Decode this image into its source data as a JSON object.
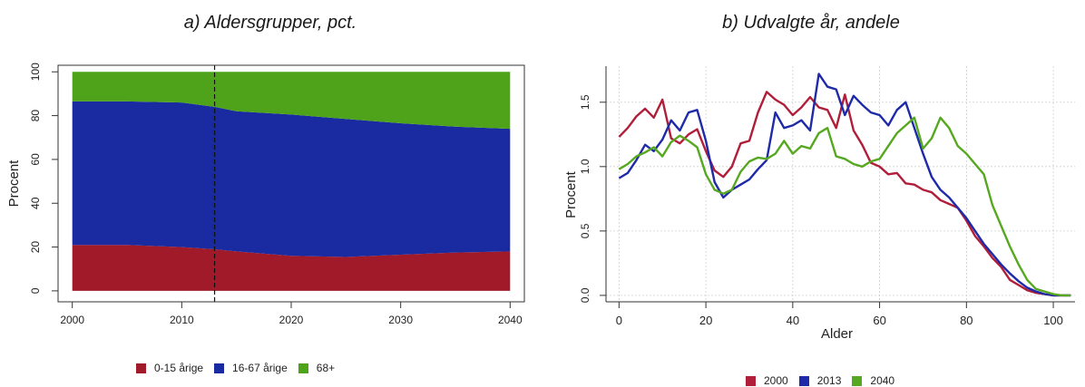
{
  "chart_data": [
    {
      "type": "area",
      "title": "a) Aldersgrupper, pct.",
      "ylabel": "Procent",
      "xlabel": "",
      "xlim": [
        2000,
        2040
      ],
      "ylim": [
        0,
        100
      ],
      "xticks": [
        2000,
        2010,
        2020,
        2030,
        2040
      ],
      "yticks": [
        0,
        20,
        40,
        60,
        80,
        100
      ],
      "vline": 2013,
      "stacked": true,
      "x": [
        2000,
        2005,
        2010,
        2013,
        2015,
        2020,
        2025,
        2030,
        2035,
        2040
      ],
      "series": [
        {
          "name": "0-15 årige",
          "color": "#a01a2a",
          "values": [
            21,
            21,
            20,
            19,
            18,
            16,
            15.5,
            16.5,
            17.5,
            18
          ]
        },
        {
          "name": "16-67 årige",
          "color": "#1a2aa0",
          "values": [
            65.5,
            65.5,
            66,
            65,
            64,
            64.5,
            63,
            60,
            57.5,
            56
          ]
        },
        {
          "name": "68+",
          "color": "#4ea31a",
          "values": [
            13.5,
            13.5,
            14,
            16,
            18,
            19.5,
            21.5,
            23.5,
            25,
            26
          ]
        }
      ],
      "legend": "bottom"
    },
    {
      "type": "line",
      "title": "b) Udvalgte år, andele",
      "xlabel": "Alder",
      "ylabel": "Procent",
      "xlim": [
        -3,
        105
      ],
      "ylim": [
        -0.05,
        1.78
      ],
      "xticks": [
        0,
        20,
        40,
        60,
        80,
        100
      ],
      "yticks": [
        0.0,
        0.5,
        1.0,
        1.5
      ],
      "grid": true,
      "x": [
        0,
        2,
        4,
        6,
        8,
        10,
        12,
        14,
        16,
        18,
        20,
        22,
        24,
        26,
        28,
        30,
        32,
        34,
        36,
        38,
        40,
        42,
        44,
        46,
        48,
        50,
        52,
        54,
        56,
        58,
        60,
        62,
        64,
        66,
        68,
        70,
        72,
        74,
        76,
        78,
        80,
        82,
        84,
        86,
        88,
        90,
        92,
        94,
        96,
        98,
        100,
        102,
        104
      ],
      "series": [
        {
          "name": "2000",
          "color": "#b01e3a",
          "values": [
            1.23,
            1.3,
            1.39,
            1.45,
            1.38,
            1.52,
            1.22,
            1.18,
            1.25,
            1.29,
            1.12,
            0.97,
            0.92,
            1.0,
            1.18,
            1.2,
            1.42,
            1.58,
            1.52,
            1.48,
            1.4,
            1.46,
            1.54,
            1.46,
            1.44,
            1.3,
            1.56,
            1.28,
            1.17,
            1.03,
            1.0,
            0.94,
            0.95,
            0.87,
            0.86,
            0.82,
            0.8,
            0.74,
            0.71,
            0.68,
            0.58,
            0.46,
            0.38,
            0.29,
            0.22,
            0.12,
            0.08,
            0.04,
            0.02,
            0.01,
            0.0,
            0.0,
            0.0
          ]
        },
        {
          "name": "2013",
          "color": "#1e2aa8",
          "values": [
            0.91,
            0.95,
            1.05,
            1.17,
            1.12,
            1.21,
            1.36,
            1.28,
            1.42,
            1.44,
            1.2,
            0.88,
            0.76,
            0.82,
            0.86,
            0.9,
            0.98,
            1.05,
            1.42,
            1.3,
            1.32,
            1.36,
            1.28,
            1.72,
            1.62,
            1.6,
            1.4,
            1.55,
            1.48,
            1.42,
            1.4,
            1.32,
            1.44,
            1.5,
            1.3,
            1.1,
            0.92,
            0.82,
            0.76,
            0.68,
            0.6,
            0.5,
            0.4,
            0.32,
            0.24,
            0.17,
            0.11,
            0.06,
            0.03,
            0.01,
            0.0,
            0.0,
            0.0
          ]
        },
        {
          "name": "2040",
          "color": "#56a820",
          "values": [
            0.98,
            1.02,
            1.08,
            1.11,
            1.15,
            1.08,
            1.19,
            1.24,
            1.2,
            1.15,
            0.94,
            0.82,
            0.79,
            0.82,
            0.96,
            1.04,
            1.07,
            1.06,
            1.1,
            1.2,
            1.1,
            1.16,
            1.14,
            1.26,
            1.3,
            1.08,
            1.06,
            1.02,
            1.0,
            1.04,
            1.06,
            1.16,
            1.26,
            1.32,
            1.38,
            1.14,
            1.22,
            1.38,
            1.3,
            1.16,
            1.1,
            1.02,
            0.94,
            0.7,
            0.54,
            0.38,
            0.24,
            0.12,
            0.05,
            0.03,
            0.01,
            0.0,
            0.0
          ]
        }
      ],
      "legend": "bottom"
    }
  ]
}
